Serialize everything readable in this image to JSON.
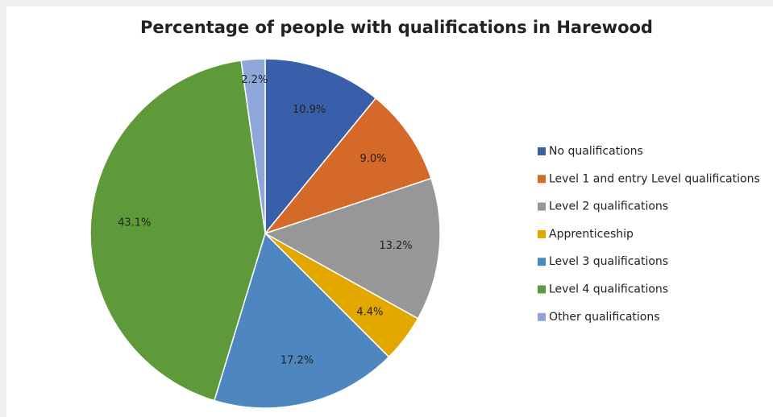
{
  "chart_data": {
    "type": "pie",
    "title": "Percentage of people with qualifications in Harewood",
    "categories": [
      "No qualifications",
      "Level 1 and entry Level qualifications",
      "Level 2 qualifications",
      "Apprenticeship",
      "Level 3 qualifications",
      "Level 4 qualifications",
      "Other qualifications"
    ],
    "values": [
      10.9,
      9.0,
      13.2,
      4.4,
      17.2,
      43.1,
      2.2
    ],
    "value_labels": [
      "10.9%",
      "9.0%",
      "13.2%",
      "4.4%",
      "17.2%",
      "43.1%",
      "2.2%"
    ],
    "colors": [
      "#3a5faa",
      "#d4692a",
      "#979797",
      "#e3a800",
      "#4e87c0",
      "#5f9a3a",
      "#8fa6d8"
    ],
    "legend": "right"
  }
}
